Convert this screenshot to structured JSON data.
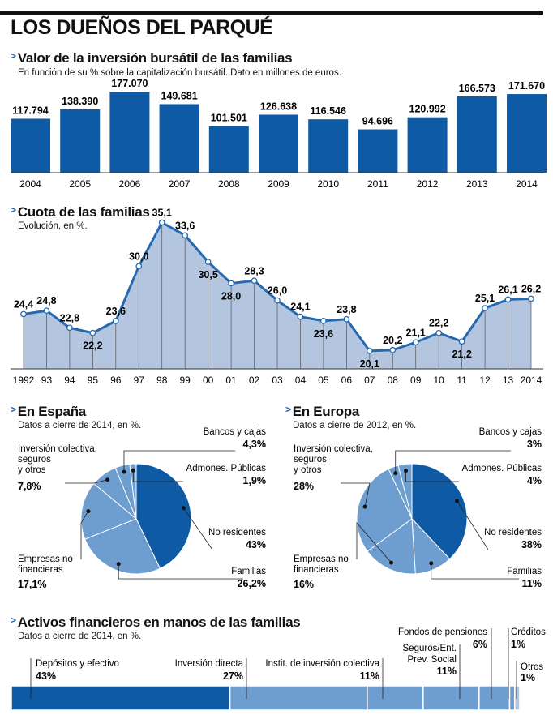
{
  "main_title": "LOS DUEÑOS DEL PARQUÉ",
  "colors": {
    "dark": "#0f5aa5",
    "mid": "#6e9dcf",
    "light": "#b4c6df",
    "line": "#2569b0"
  },
  "chart_data": [
    {
      "type": "bar",
      "title": "Valor de la inversión bursátil de las familias",
      "subtitle": "En función de su % sobre la capitalización bursátil. Dato en millones de euros.",
      "categories": [
        "2004",
        "2005",
        "2006",
        "2007",
        "2008",
        "2009",
        "2010",
        "2011",
        "2012",
        "2013",
        "2014"
      ],
      "values": [
        117794,
        138390,
        177070,
        149681,
        101501,
        126638,
        116546,
        94696,
        120992,
        166573,
        171670
      ],
      "value_labels": [
        "117.794",
        "138.390",
        "177.070",
        "149.681",
        "101.501",
        "126.638",
        "116.546",
        "94.696",
        "120.992",
        "166.573",
        "171.670"
      ],
      "ylim": [
        0,
        177070
      ]
    },
    {
      "type": "area",
      "title": "Cuota de las familias",
      "subtitle": "Evolución, en %.",
      "x": [
        "1992",
        "93",
        "94",
        "95",
        "96",
        "97",
        "98",
        "99",
        "00",
        "01",
        "02",
        "03",
        "04",
        "05",
        "06",
        "07",
        "08",
        "09",
        "10",
        "11",
        "12",
        "13",
        "2014"
      ],
      "values": [
        24.4,
        24.8,
        22.8,
        22.2,
        23.6,
        30.0,
        35.1,
        33.6,
        30.5,
        28.0,
        28.3,
        26.0,
        24.1,
        23.6,
        23.8,
        20.1,
        20.2,
        21.1,
        22.2,
        21.2,
        25.1,
        26.1,
        26.2
      ],
      "value_labels": [
        "24,4",
        "24,8",
        "22,8",
        "22,2",
        "23,6",
        "30,0",
        "35,1",
        "33,6",
        "30,5",
        "28,0",
        "28,3",
        "26,0",
        "24,1",
        "23,6",
        "23,8",
        "20,1",
        "20,2",
        "21,1",
        "22,2",
        "21,2",
        "25,1",
        "26,1",
        "26,2"
      ],
      "ylim": [
        18,
        36
      ]
    },
    {
      "type": "pie",
      "title": "En España",
      "subtitle": "Datos a cierre de 2014, en %.",
      "slices": [
        {
          "label": "No residentes",
          "value": 43,
          "value_label": "43%"
        },
        {
          "label": "Familias",
          "value": 26.2,
          "value_label": "26,2%"
        },
        {
          "label": "Empresas no financieras",
          "value": 17.1,
          "value_label": "17,1%"
        },
        {
          "label": "Inversión colectiva, seguros y otros",
          "value": 7.8,
          "value_label": "7,8%"
        },
        {
          "label": "Bancos y cajas",
          "value": 4.3,
          "value_label": "4,3%"
        },
        {
          "label": "Admones. Públicas",
          "value": 1.9,
          "value_label": "1,9%"
        }
      ]
    },
    {
      "type": "pie",
      "title": "En Europa",
      "subtitle": "Datos a cierre de 2012, en %.",
      "slices": [
        {
          "label": "No residentes",
          "value": 38,
          "value_label": "38%"
        },
        {
          "label": "Familias",
          "value": 11,
          "value_label": "11%"
        },
        {
          "label": "Empresas no financieras",
          "value": 16,
          "value_label": "16%"
        },
        {
          "label": "Inversión colectiva, seguros y otros",
          "value": 28,
          "value_label": "28%"
        },
        {
          "label": "Bancos y cajas",
          "value": 3,
          "value_label": "3%"
        },
        {
          "label": "Admones. Públicas",
          "value": 4,
          "value_label": "4%"
        }
      ]
    },
    {
      "type": "bar",
      "stacked": true,
      "title": "Activos financieros en manos de las familias",
      "subtitle": "Datos a cierre de 2014, en %.",
      "segments": [
        {
          "label": "Depósitos y efectivo",
          "value": 43,
          "value_label": "43%"
        },
        {
          "label": "Inversión directa",
          "value": 27,
          "value_label": "27%"
        },
        {
          "label": "Instit. de inversión colectiva",
          "value": 11,
          "value_label": "11%"
        },
        {
          "label": "Seguros/Ent. Prev. Social",
          "value": 11,
          "value_label": "11%"
        },
        {
          "label": "Fondos de pensiones",
          "value": 6,
          "value_label": "6%"
        },
        {
          "label": "Créditos",
          "value": 1,
          "value_label": "1%"
        },
        {
          "label": "Otros",
          "value": 1,
          "value_label": "1%"
        }
      ]
    }
  ],
  "pie_labels": {
    "es": {
      "inversion": [
        "Inversión colectiva,",
        "seguros",
        "y otros"
      ],
      "empresas": [
        "Empresas no",
        "financieras"
      ],
      "bancos": [
        "Bancos y cajas"
      ],
      "admones": [
        "Admones. Públicas"
      ],
      "noresid": [
        "No residentes"
      ],
      "familias": [
        "Familias"
      ]
    },
    "eu": {
      "inversion": [
        "Inversión colectiva,",
        "seguros",
        "y otros"
      ],
      "empresas": [
        "Empresas no",
        "financieras"
      ],
      "bancos": [
        "Bancos y cajas"
      ],
      "admones": [
        "Admones. Públicas"
      ],
      "noresid": [
        "No residentes"
      ],
      "familias": [
        "Familias"
      ]
    }
  },
  "assets_labels": {
    "seguros": [
      "Seguros/Ent.",
      "Prev. Social"
    ]
  }
}
